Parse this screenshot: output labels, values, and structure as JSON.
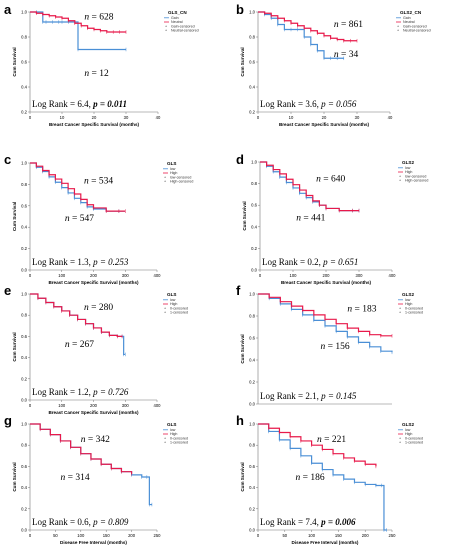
{
  "colors": {
    "blue": "#4a8fd6",
    "red": "#e8194a",
    "axis": "#777777"
  },
  "chart_data": [
    {
      "panel": "a",
      "type": "line",
      "legend_title": "GLS_CN",
      "legend_items": [
        "Gain",
        "Neutral",
        "Gain-censored",
        "Neutral-censored"
      ],
      "xlabel": "Breast Cancer Specific Survival (months)",
      "ylabel": "Cum Survival",
      "xlim": [
        0,
        40
      ],
      "ylim": [
        0.2,
        1.0
      ],
      "xticks": [
        "0",
        "10",
        "20",
        "30",
        "40"
      ],
      "yticks": [
        "1.0",
        "0.8",
        "0.6",
        "0.4",
        "0.2"
      ],
      "series": [
        {
          "name": "Gain",
          "color": "#4a8fd6",
          "x": [
            0,
            2,
            4,
            5,
            7,
            9,
            10,
            12,
            14,
            15,
            30
          ],
          "y": [
            1.0,
            1.0,
            0.92,
            0.92,
            0.92,
            0.92,
            0.92,
            0.92,
            0.92,
            0.7,
            0.7
          ]
        },
        {
          "name": "Neutral",
          "color": "#e8194a",
          "x": [
            0,
            2,
            4,
            6,
            8,
            10,
            12,
            14,
            16,
            18,
            20,
            22,
            24,
            26,
            28,
            30
          ],
          "y": [
            1.0,
            0.99,
            0.98,
            0.97,
            0.96,
            0.95,
            0.93,
            0.91,
            0.89,
            0.87,
            0.86,
            0.85,
            0.84,
            0.84,
            0.84,
            0.84
          ]
        }
      ],
      "n_labels": [
        {
          "text": "628",
          "x": 17,
          "y": 0.94
        },
        {
          "text": "12",
          "x": 17,
          "y": 0.49
        }
      ],
      "stat": {
        "prefix": "Log Rank = 6.4, ",
        "p_text": "p = 0.011",
        "bold": true
      }
    },
    {
      "panel": "b",
      "type": "line",
      "legend_title": "GLS2_CN",
      "legend_items": [
        "Gain",
        "Neutral",
        "Gain-censored",
        "Neutral-censored"
      ],
      "xlabel": "Breast Cancer Specific Survival (months)",
      "ylabel": "Cum Survival",
      "xlim": [
        0,
        40
      ],
      "ylim": [
        0.2,
        1.0
      ],
      "xticks": [
        "0",
        "10",
        "20",
        "30",
        "40"
      ],
      "yticks": [
        "1.0",
        "0.8",
        "0.6",
        "0.4",
        "0.2"
      ],
      "series": [
        {
          "name": "Gain",
          "color": "#4a8fd6",
          "x": [
            0,
            2,
            4,
            6,
            8,
            10,
            12,
            14,
            16,
            18,
            20,
            22,
            24,
            26
          ],
          "y": [
            1.0,
            0.98,
            0.95,
            0.9,
            0.86,
            0.86,
            0.86,
            0.8,
            0.74,
            0.69,
            0.63,
            0.63,
            0.63,
            0.63
          ]
        },
        {
          "name": "Neutral",
          "color": "#e8194a",
          "x": [
            0,
            2,
            4,
            6,
            8,
            10,
            12,
            14,
            16,
            18,
            20,
            22,
            24,
            26,
            28,
            30
          ],
          "y": [
            1.0,
            0.99,
            0.97,
            0.95,
            0.93,
            0.91,
            0.89,
            0.87,
            0.85,
            0.83,
            0.81,
            0.79,
            0.78,
            0.77,
            0.77,
            0.77
          ]
        }
      ],
      "n_labels": [
        {
          "text": "861",
          "x": 23,
          "y": 0.88
        },
        {
          "text": "34",
          "x": 23,
          "y": 0.64
        }
      ],
      "stat": {
        "prefix": "Log Rank = 3.6, ",
        "p_text": "p = 0.056",
        "bold": false
      }
    },
    {
      "panel": "c",
      "type": "line",
      "legend_title": "GLS",
      "legend_items": [
        "low",
        "High",
        "low-censored",
        "High-censored"
      ],
      "xlabel": "Breast Cancer Specific Survival (months)",
      "ylabel": "Cum Survival",
      "xlim": [
        0,
        400
      ],
      "ylim": [
        0.0,
        1.0
      ],
      "xticks": [
        "0",
        "100",
        "200",
        "300",
        "400"
      ],
      "yticks": [
        "1.0",
        "0.8",
        "0.6",
        "0.4",
        "0.2",
        "0.0"
      ],
      "series": [
        {
          "name": "low",
          "color": "#4a8fd6",
          "x": [
            0,
            20,
            40,
            60,
            80,
            100,
            120,
            140,
            160,
            180,
            200,
            240,
            280,
            300
          ],
          "y": [
            1.0,
            0.96,
            0.92,
            0.87,
            0.82,
            0.77,
            0.72,
            0.67,
            0.63,
            0.59,
            0.57,
            0.55,
            0.55,
            0.55
          ]
        },
        {
          "name": "High",
          "color": "#e8194a",
          "x": [
            0,
            20,
            40,
            60,
            80,
            100,
            120,
            140,
            160,
            180,
            200,
            240,
            280,
            300
          ],
          "y": [
            1.0,
            0.97,
            0.93,
            0.89,
            0.85,
            0.81,
            0.76,
            0.71,
            0.66,
            0.61,
            0.58,
            0.55,
            0.55,
            0.55
          ]
        }
      ],
      "n_labels": [
        {
          "text": "534",
          "x": 170,
          "y": 0.81
        },
        {
          "text": "547",
          "x": 110,
          "y": 0.46
        }
      ],
      "stat": {
        "prefix": "Log Rank = 1.3, ",
        "p_text": "p = 0.253",
        "bold": false
      }
    },
    {
      "panel": "d",
      "type": "line",
      "legend_title": "GLS2",
      "legend_items": [
        "low",
        "High",
        "low-censored",
        "High-censored"
      ],
      "xlabel": "Breast Cancer Specific Survival (months)",
      "ylabel": "Cum Survival",
      "xlim": [
        0,
        400
      ],
      "ylim": [
        0.0,
        1.0
      ],
      "xticks": [
        "0",
        "100",
        "200",
        "300",
        "400"
      ],
      "yticks": [
        "1.0",
        "0.8",
        "0.6",
        "0.4",
        "0.2",
        "0.0"
      ],
      "series": [
        {
          "name": "low",
          "color": "#4a8fd6",
          "x": [
            0,
            20,
            40,
            60,
            80,
            100,
            120,
            140,
            160,
            180,
            200,
            240,
            280,
            300
          ],
          "y": [
            1.0,
            0.96,
            0.91,
            0.86,
            0.81,
            0.76,
            0.71,
            0.67,
            0.63,
            0.6,
            0.57,
            0.55,
            0.55,
            0.55
          ]
        },
        {
          "name": "High",
          "color": "#e8194a",
          "x": [
            0,
            20,
            40,
            60,
            80,
            100,
            120,
            140,
            160,
            180,
            200,
            240,
            280,
            300
          ],
          "y": [
            1.0,
            0.97,
            0.93,
            0.89,
            0.84,
            0.79,
            0.74,
            0.69,
            0.64,
            0.6,
            0.57,
            0.55,
            0.55,
            0.55
          ]
        }
      ],
      "n_labels": [
        {
          "text": "640",
          "x": 170,
          "y": 0.82
        },
        {
          "text": "441",
          "x": 110,
          "y": 0.46
        }
      ],
      "stat": {
        "prefix": "Log Rank = 0.2, ",
        "p_text": "p = 0.651",
        "bold": false
      }
    },
    {
      "panel": "e",
      "type": "line",
      "legend_title": "GLS",
      "legend_items": [
        "low",
        "High",
        "0-censored",
        "1-censored"
      ],
      "xlabel": "Breast Cancer Specific Survival (months)",
      "ylabel": "Cum Survival",
      "xlim": [
        0,
        400
      ],
      "ylim": [
        0.0,
        1.0
      ],
      "xticks": [
        "0",
        "100",
        "200",
        "300",
        "400"
      ],
      "yticks": [
        "1.0",
        "0.8",
        "0.6",
        "0.4",
        "0.2",
        "0.0"
      ],
      "series": [
        {
          "name": "low",
          "color": "#4a8fd6",
          "x": [
            0,
            25,
            50,
            75,
            100,
            125,
            150,
            175,
            200,
            225,
            250,
            275,
            290,
            295,
            300
          ],
          "y": [
            1.0,
            0.96,
            0.92,
            0.88,
            0.84,
            0.8,
            0.76,
            0.72,
            0.68,
            0.64,
            0.61,
            0.6,
            0.6,
            0.43,
            0.43
          ]
        },
        {
          "name": "High",
          "color": "#e8194a",
          "x": [
            0,
            25,
            50,
            75,
            100,
            125,
            150,
            175,
            200,
            225,
            250,
            275,
            290
          ],
          "y": [
            1.0,
            0.96,
            0.92,
            0.88,
            0.84,
            0.8,
            0.76,
            0.72,
            0.68,
            0.64,
            0.61,
            0.6,
            0.6
          ]
        }
      ],
      "n_labels": [
        {
          "text": "280",
          "x": 170,
          "y": 0.85
        },
        {
          "text": "267",
          "x": 110,
          "y": 0.5
        }
      ],
      "stat": {
        "prefix": "Log Rank = 1.2, ",
        "p_text": "p = 0.726",
        "bold": false
      }
    },
    {
      "panel": "f",
      "type": "line",
      "legend_title": "GLS2",
      "legend_items": [
        "low",
        "High",
        "0-censored",
        "1-censored"
      ],
      "xlabel": "",
      "ylabel": "Cum Survival",
      "xlim": [
        0,
        300
      ],
      "ylim": [
        0.0,
        1.0
      ],
      "xticks": [],
      "yticks": [
        "1.0",
        "0.8",
        "0.6",
        "0.4",
        "0.2",
        "0.0"
      ],
      "series": [
        {
          "name": "low",
          "color": "#4a8fd6",
          "x": [
            0,
            25,
            50,
            75,
            100,
            125,
            150,
            175,
            200,
            225,
            250,
            275,
            300
          ],
          "y": [
            1.0,
            0.96,
            0.91,
            0.86,
            0.81,
            0.76,
            0.71,
            0.66,
            0.61,
            0.56,
            0.52,
            0.48,
            0.47
          ]
        },
        {
          "name": "High",
          "color": "#e8194a",
          "x": [
            0,
            25,
            50,
            75,
            100,
            125,
            150,
            175,
            200,
            225,
            250,
            275,
            300
          ],
          "y": [
            1.0,
            0.97,
            0.93,
            0.89,
            0.85,
            0.81,
            0.77,
            0.73,
            0.69,
            0.66,
            0.63,
            0.62,
            0.62
          ]
        }
      ],
      "n_labels": [
        {
          "text": "183",
          "x": 200,
          "y": 0.84
        },
        {
          "text": "156",
          "x": 140,
          "y": 0.5
        }
      ],
      "stat": {
        "prefix": "Log Rank = 2.1, ",
        "p_text": "p = 0.145",
        "bold": false
      }
    },
    {
      "panel": "g",
      "type": "line",
      "legend_title": "GLS",
      "legend_items": [
        "low",
        "High",
        "0-censored",
        "1-censored"
      ],
      "xlabel": "Disease Free Interval (months)",
      "ylabel": "Cum Survival",
      "xlim": [
        0,
        250
      ],
      "ylim": [
        0.0,
        1.0
      ],
      "xticks": [
        "0",
        "50",
        "100",
        "150",
        "200",
        "250"
      ],
      "yticks": [
        "1.0",
        "0.8",
        "0.6",
        "0.4",
        "0.2",
        "0.0"
      ],
      "series": [
        {
          "name": "low",
          "color": "#4a8fd6",
          "x": [
            0,
            20,
            40,
            60,
            80,
            100,
            120,
            140,
            160,
            180,
            200,
            220,
            230,
            235,
            240
          ],
          "y": [
            1.0,
            0.95,
            0.9,
            0.84,
            0.78,
            0.72,
            0.67,
            0.62,
            0.58,
            0.55,
            0.52,
            0.5,
            0.5,
            0.24,
            0.24
          ]
        },
        {
          "name": "High",
          "color": "#e8194a",
          "x": [
            0,
            20,
            40,
            60,
            80,
            100,
            120,
            140,
            160,
            180,
            200
          ],
          "y": [
            1.0,
            0.95,
            0.9,
            0.84,
            0.78,
            0.72,
            0.67,
            0.62,
            0.58,
            0.55,
            0.53
          ]
        }
      ],
      "n_labels": [
        {
          "text": "342",
          "x": 100,
          "y": 0.83
        },
        {
          "text": "314",
          "x": 60,
          "y": 0.47
        }
      ],
      "stat": {
        "prefix": "Log Rank = 0.6, ",
        "p_text": "p = 0.809",
        "bold": false
      }
    },
    {
      "panel": "h",
      "type": "line",
      "legend_title": "GLS2",
      "legend_items": [
        "low",
        "High",
        "0-censored",
        "1-censored"
      ],
      "xlabel": "Disease Free Interval (months)",
      "ylabel": "Cum Survival",
      "xlim": [
        0,
        250
      ],
      "ylim": [
        0.0,
        1.0
      ],
      "xticks": [
        "0",
        "50",
        "100",
        "150",
        "200",
        "250"
      ],
      "yticks": [
        "1.0",
        "0.8",
        "0.6",
        "0.4",
        "0.2",
        "0.0"
      ],
      "series": [
        {
          "name": "low",
          "color": "#4a8fd6",
          "x": [
            0,
            20,
            40,
            60,
            80,
            100,
            120,
            140,
            160,
            180,
            200,
            220,
            230,
            235,
            240
          ],
          "y": [
            1.0,
            0.93,
            0.85,
            0.77,
            0.7,
            0.63,
            0.57,
            0.52,
            0.48,
            0.45,
            0.43,
            0.42,
            0.42,
            0.0,
            0.0
          ]
        },
        {
          "name": "High",
          "color": "#e8194a",
          "x": [
            0,
            20,
            40,
            60,
            80,
            100,
            120,
            140,
            160,
            180,
            200,
            220
          ],
          "y": [
            1.0,
            0.96,
            0.92,
            0.88,
            0.84,
            0.8,
            0.76,
            0.72,
            0.68,
            0.65,
            0.62,
            0.6
          ]
        }
      ],
      "n_labels": [
        {
          "text": "221",
          "x": 110,
          "y": 0.83
        },
        {
          "text": "186",
          "x": 70,
          "y": 0.47
        }
      ],
      "stat": {
        "prefix": "Log Rank = 7.4, ",
        "p_text": "p = 0.006",
        "bold": true
      }
    }
  ]
}
